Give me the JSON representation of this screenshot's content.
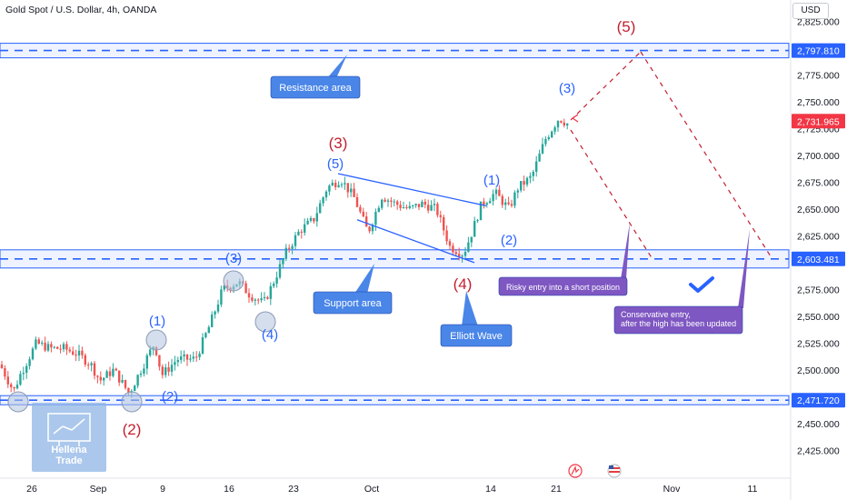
{
  "header": {
    "title": "Gold Spot / U.S. Dollar, 4h, OANDA",
    "currency": "USD"
  },
  "chart_data": {
    "type": "candlestick",
    "symbol": "Gold Spot / U.S. Dollar",
    "timeframe": "4h",
    "exchange": "OANDA",
    "y_range": [
      2410,
      2828
    ],
    "y_ticks": [
      "2,825.000",
      "2,775.000",
      "2,750.000",
      "2,725.000",
      "2,700.000",
      "2,675.000",
      "2,650.000",
      "2,625.000",
      "2,575.000",
      "2,550.000",
      "2,525.000",
      "2,500.000",
      "2,450.000",
      "2,425.000"
    ],
    "y_tick_values": [
      2825,
      2775,
      2750,
      2725,
      2700,
      2675,
      2650,
      2625,
      2575,
      2550,
      2525,
      2500,
      2450,
      2425
    ],
    "x_ticks": [
      "26",
      "Sep",
      "9",
      "16",
      "23",
      "Oct",
      "14",
      "21",
      "Nov",
      "11"
    ],
    "price_labels": [
      {
        "text": "2,797.810",
        "value": 2797.81,
        "color": "#2962ff"
      },
      {
        "text": "2,731.965",
        "value": 2731.965,
        "color": "#f23645"
      },
      {
        "text": "2,603.481",
        "value": 2603.481,
        "color": "#2962ff"
      },
      {
        "text": "2,471.720",
        "value": 2471.72,
        "color": "#2962ff"
      }
    ],
    "levels": [
      {
        "name": "resistance",
        "value": 2797.81
      },
      {
        "name": "support",
        "value": 2603.481
      },
      {
        "name": "low",
        "value": 2471.72
      }
    ],
    "last_price": 2731.965,
    "red_wave_labels": [
      "(5)",
      "(3)",
      "(4)",
      "(2)"
    ],
    "blue_wave_labels": [
      "(3)",
      "(5)",
      "(1)",
      "(2)",
      "(3)",
      "(4)",
      "(1)",
      "(2)"
    ],
    "annotations": {
      "resistance": "Resistance area",
      "support": "Support area",
      "elliott": "Elliott Wave",
      "risky": "Risky entry into a short position",
      "conservative_line1": "Conservative entry,",
      "conservative_line2": "after the high has been updated"
    },
    "colors": {
      "up": "#26a69a",
      "down": "#ef5350",
      "zone": "#2962ff",
      "projection": "#c21f2f",
      "label_bg": "#4a86e8",
      "note_bg": "#7e57c2"
    }
  },
  "watermark": {
    "line1": "Hellena",
    "line2": "Trade"
  }
}
